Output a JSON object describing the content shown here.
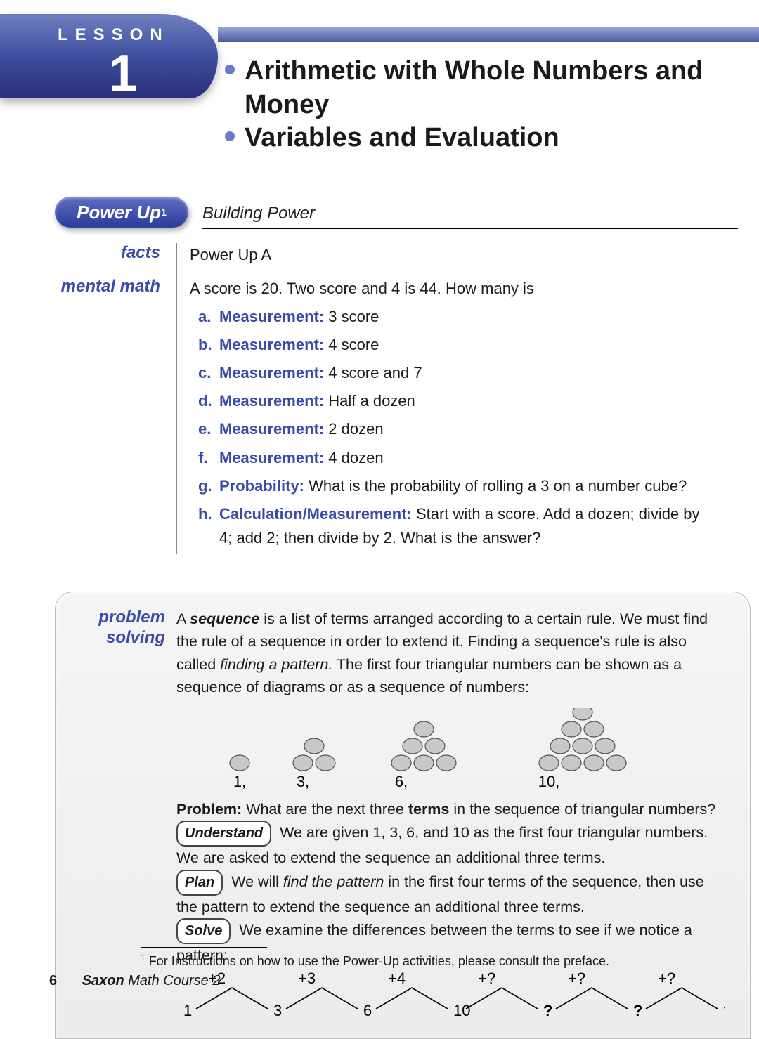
{
  "lesson": {
    "label": "LESSON",
    "number": "1",
    "titles": [
      "Arithmetic with Whole Numbers and Money",
      "Variables and Evaluation"
    ]
  },
  "palette": {
    "accent": "#3b4ca8",
    "banner_gradient": [
      "#6f7fbf",
      "#3b4a9a",
      "#2a2f7a"
    ],
    "dot_fill": "#c8c8c8",
    "dot_stroke": "#555555",
    "panel_bg": "#f0f0f0"
  },
  "powerup": {
    "pill": "Power Up",
    "pill_sup": "1",
    "subtitle": "Building Power"
  },
  "facts": {
    "label": "facts",
    "text": "Power Up A"
  },
  "mental": {
    "label": "mental math",
    "intro": "A score is 20. Two score and 4 is 44. How many is",
    "items": [
      {
        "letter": "a.",
        "cat": "Measurement:",
        "text": " 3 score"
      },
      {
        "letter": "b.",
        "cat": "Measurement:",
        "text": " 4 score"
      },
      {
        "letter": "c.",
        "cat": "Measurement:",
        "text": " 4 score and 7"
      },
      {
        "letter": "d.",
        "cat": "Measurement:",
        "text": " Half a dozen"
      },
      {
        "letter": "e.",
        "cat": "Measurement:",
        "text": " 2 dozen"
      },
      {
        "letter": "f.",
        "cat": "Measurement:",
        "text": " 4 dozen"
      },
      {
        "letter": "g.",
        "cat": "Probability:",
        "text": " What is the probability of rolling a 3 on a number cube?"
      },
      {
        "letter": "h.",
        "cat": "Calculation/Measurement:",
        "text": " Start with a score. Add a dozen; divide by 4; add 2; then divide by 2. What is the answer?"
      }
    ]
  },
  "problem": {
    "label": "problem solving",
    "intro_1": "A ",
    "intro_term": "sequence",
    "intro_2": " is a list of terms arranged according to a certain rule. We must find the rule of a sequence in order to extend it. Finding a sequence's rule is also called ",
    "intro_em": "finding a pattern.",
    "intro_3": " The first four triangular numbers can be shown as a sequence of diagrams or as a sequence of numbers:",
    "triangles": {
      "values": [
        1,
        3,
        6,
        10
      ],
      "labels": [
        "1,",
        "3,",
        "6,",
        "10,"
      ],
      "dot_rx": 14,
      "dot_ry": 11,
      "dot_fill": "#c8c8c8",
      "dot_stroke": "#555555"
    },
    "q_pre": "Problem:",
    "q_text_1": " What are the next three ",
    "q_bold": "terms",
    "q_text_2": " in the sequence of triangular numbers?",
    "understand": {
      "tag": "Understand",
      "text": " We are given 1, 3, 6, and 10 as the first four triangular numbers. We are asked to extend the sequence an additional three terms."
    },
    "plan": {
      "tag": "Plan",
      "text_1": " We will ",
      "em": "find the pattern",
      "text_2": " in the first four terms of the sequence, then use the pattern to extend the sequence an additional three terms."
    },
    "solve": {
      "tag": "Solve",
      "text": " We examine the differences between the terms to see if we notice a pattern:"
    },
    "arcseq": {
      "labels": [
        "1",
        "3",
        "6",
        "10",
        "?",
        "?",
        "?"
      ],
      "deltas": [
        "+2",
        "+3",
        "+4",
        "+?",
        "+?",
        "+?"
      ],
      "bold_from_index": 4
    }
  },
  "footnote": {
    "sup": "1",
    "text": " For Instructions on how to use the Power-Up activities, please consult the preface."
  },
  "footer": {
    "page": "6",
    "book_bold": "Saxon",
    "book_rest": " Math Course 2"
  }
}
